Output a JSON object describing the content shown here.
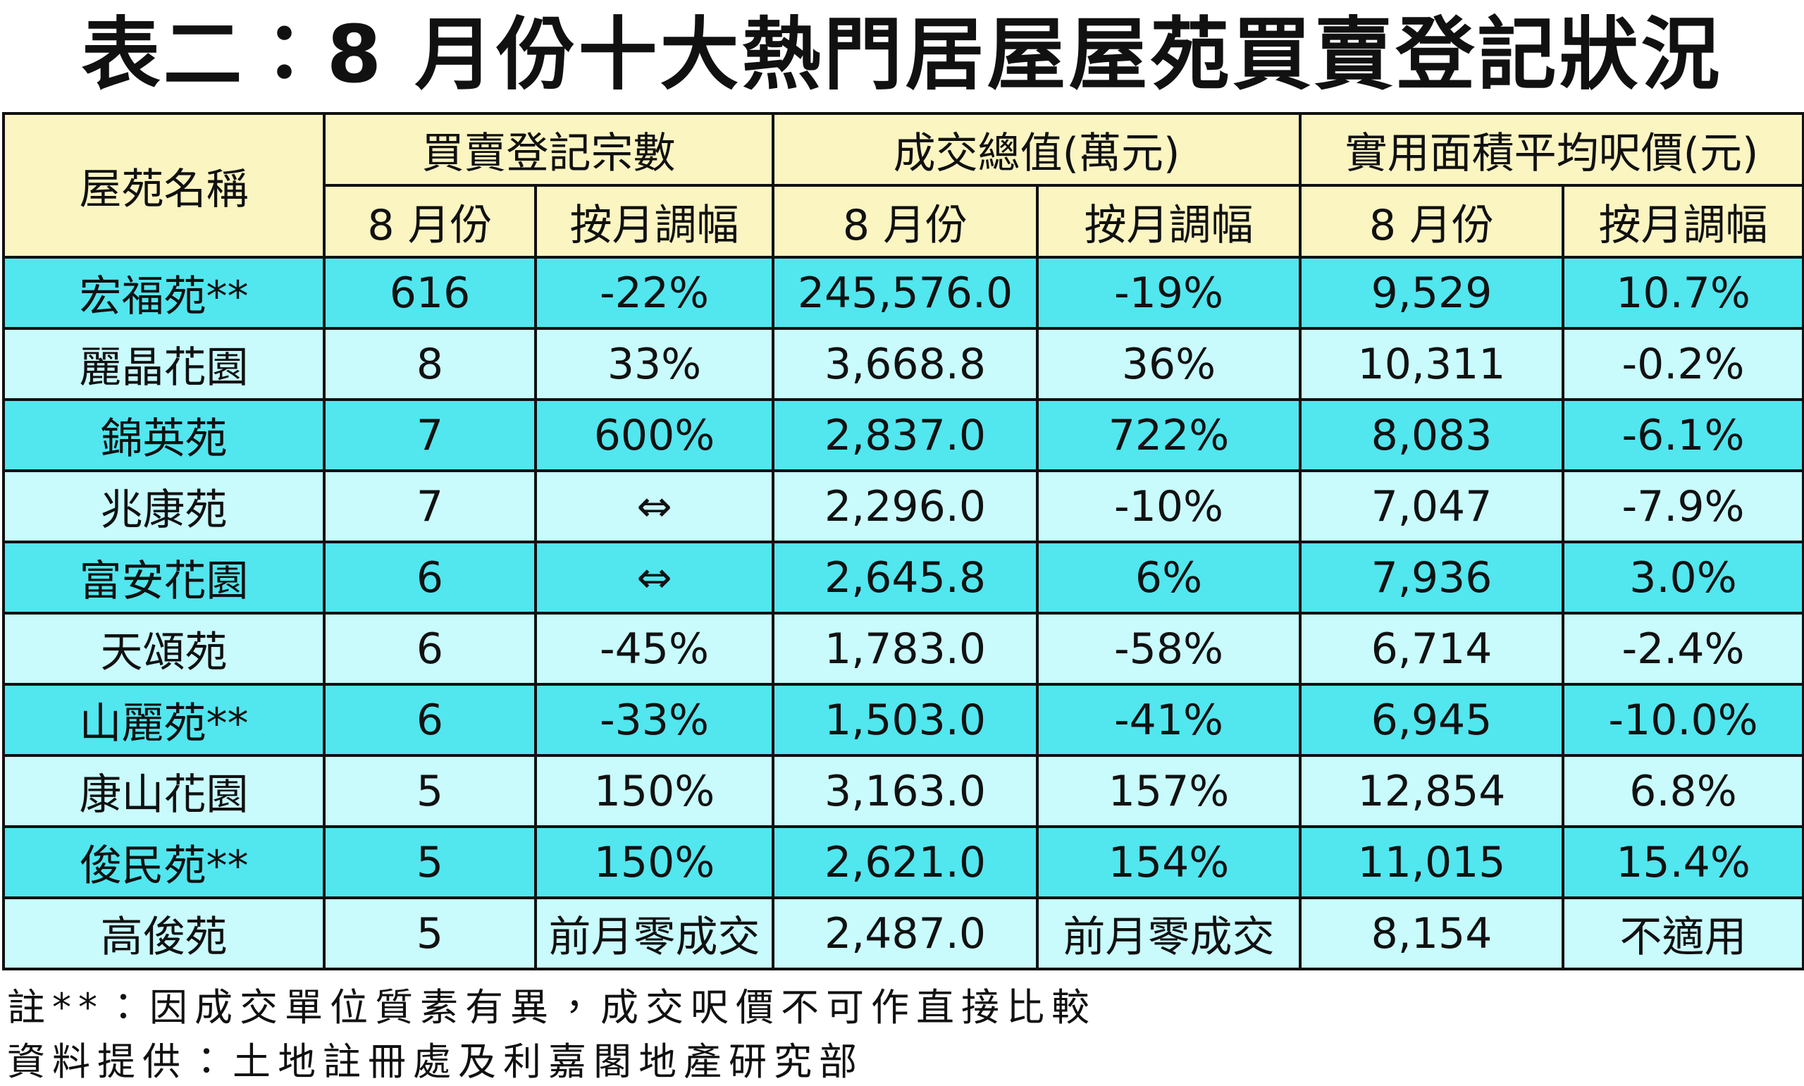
{
  "header": {
    "title": "表二：8 月份十大熱門居屋屋苑買賣登記狀況"
  },
  "table": {
    "corner": "屋苑名稱",
    "groups": [
      "買賣登記宗數",
      "成交總值(萬元)",
      "實用面積平均呎價(元)"
    ],
    "subheaders": [
      "8 月份",
      "按月調幅",
      "8 月份",
      "按月調幅",
      "8 月份",
      "按月調幅"
    ],
    "rows": [
      [
        "宏福苑**",
        "616",
        "-22%",
        "245,576.0",
        "-19%",
        "9,529",
        "10.7%"
      ],
      [
        "麗晶花園",
        "8",
        "33%",
        "3,668.8",
        "36%",
        "10,311",
        "-0.2%"
      ],
      [
        "錦英苑",
        "7",
        "600%",
        "2,837.0",
        "722%",
        "8,083",
        "-6.1%"
      ],
      [
        "兆康苑",
        "7",
        "⇔",
        "2,296.0",
        "-10%",
        "7,047",
        "-7.9%"
      ],
      [
        "富安花園",
        "6",
        "⇔",
        "2,645.8",
        "6%",
        "7,936",
        "3.0%"
      ],
      [
        "天頌苑",
        "6",
        "-45%",
        "1,783.0",
        "-58%",
        "6,714",
        "-2.4%"
      ],
      [
        "山麗苑**",
        "6",
        "-33%",
        "1,503.0",
        "-41%",
        "6,945",
        "-10.0%"
      ],
      [
        "康山花園",
        "5",
        "150%",
        "3,163.0",
        "157%",
        "12,854",
        "6.8%"
      ],
      [
        "俊民苑**",
        "5",
        "150%",
        "2,621.0",
        "154%",
        "11,015",
        "15.4%"
      ],
      [
        "高俊苑",
        "5",
        "前月零成交",
        "2,487.0",
        "前月零成交",
        "8,154",
        "不適用"
      ]
    ]
  },
  "notes": [
    "註**：因成交單位質素有異，成交呎價不可作直接比較",
    "資料提供：土地註冊處及利嘉閣地產研究部"
  ]
}
